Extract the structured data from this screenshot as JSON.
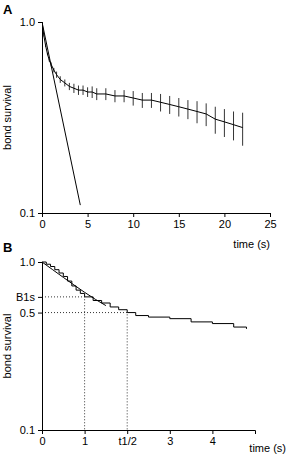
{
  "chart_data": [
    {
      "type": "line",
      "title": "A",
      "x_label": "time (s)",
      "y_label": "bond survival",
      "log": "y",
      "xlim": [
        0,
        25
      ],
      "xticks": [
        0,
        5,
        10,
        15,
        20,
        25
      ],
      "ylim": [
        0.1,
        1
      ],
      "yticks": [
        0.1,
        {
          "value": 1,
          "label": "1.0"
        }
      ],
      "series": [
        {
          "color": "#000000",
          "x": [
            0,
            0.2,
            0.4,
            0.6,
            0.8,
            1,
            1.3,
            1.6,
            2,
            2.5,
            3,
            3.5,
            4,
            4.5,
            5,
            5.5,
            6,
            7,
            8,
            9,
            10,
            11,
            12,
            13,
            14,
            15,
            16,
            17,
            18,
            19,
            20,
            21,
            22
          ],
          "values": [
            1,
            0.85,
            0.75,
            0.68,
            0.63,
            0.6,
            0.56,
            0.53,
            0.5,
            0.48,
            0.46,
            0.45,
            0.44,
            0.44,
            0.43,
            0.43,
            0.42,
            0.42,
            0.41,
            0.41,
            0.4,
            0.39,
            0.39,
            0.38,
            0.37,
            0.36,
            0.35,
            0.34,
            0.33,
            0.31,
            0.3,
            0.29,
            0.28
          ],
          "errors": [
            0,
            0.01,
            0.01,
            0.01,
            0.01,
            0.015,
            0.015,
            0.02,
            0.02,
            0.02,
            0.02,
            0.025,
            0.025,
            0.025,
            0.025,
            0.03,
            0.03,
            0.03,
            0.03,
            0.03,
            0.035,
            0.035,
            0.035,
            0.04,
            0.04,
            0.04,
            0.04,
            0.045,
            0.045,
            0.05,
            0.05,
            0.05,
            0.055
          ]
        },
        {
          "color": "#000000",
          "x": [
            0,
            4.2
          ],
          "values": [
            1,
            0.11
          ]
        }
      ]
    },
    {
      "type": "line",
      "title": "B",
      "x_label": "time (s)",
      "y_label": "bond survival",
      "log": "y",
      "xlim": [
        0,
        5
      ],
      "xticks": [
        0,
        1,
        {
          "value": 2,
          "label": "t1/2"
        },
        3,
        4
      ],
      "ylim": [
        0.1,
        1
      ],
      "yticks": [
        0.1,
        0.5,
        {
          "value": 0.62,
          "label": "B1s"
        },
        {
          "value": 1,
          "label": "1.0"
        }
      ],
      "guides": [
        {
          "x": 1,
          "y": 0.62
        },
        {
          "x": 2,
          "y": 0.5
        }
      ],
      "series": [
        {
          "color": "#000000",
          "line_style": "step",
          "x": [
            0,
            0.1,
            0.2,
            0.3,
            0.4,
            0.5,
            0.6,
            0.7,
            0.8,
            0.9,
            1,
            1.2,
            1.4,
            1.6,
            1.8,
            2,
            2.2,
            2.5,
            3,
            3.5,
            4,
            4.5,
            4.8
          ],
          "values": [
            1,
            0.97,
            0.94,
            0.9,
            0.86,
            0.82,
            0.77,
            0.72,
            0.68,
            0.65,
            0.62,
            0.59,
            0.57,
            0.54,
            0.52,
            0.5,
            0.48,
            0.47,
            0.46,
            0.44,
            0.43,
            0.41,
            0.4
          ]
        },
        {
          "color": "#000000",
          "x": [
            0,
            0.25,
            0.5,
            0.75,
            1,
            1.25,
            1.5
          ],
          "values": [
            1,
            0.9,
            0.81,
            0.73,
            0.66,
            0.6,
            0.55
          ]
        }
      ]
    }
  ]
}
